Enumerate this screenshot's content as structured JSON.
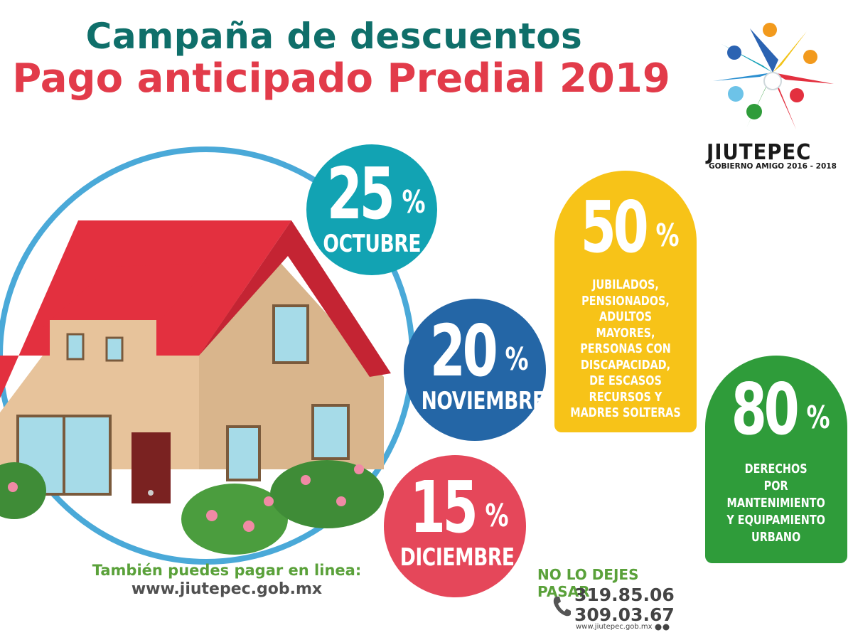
{
  "header": {
    "title_line1": "Campaña de descuentos",
    "title_line2": "Pago anticipado Predial 2019"
  },
  "logo": {
    "name": "JIUTEPEC",
    "tagline": "GOBIERNO AMIGO 2016 - 2018",
    "icon": "star-people-logo"
  },
  "discounts": [
    {
      "percent": "25",
      "symbol": "%",
      "month": "OCTUBRE",
      "color": "#12a3b3"
    },
    {
      "percent": "20",
      "symbol": "%",
      "month": "NOVIEMBRE",
      "color": "#2466a6"
    },
    {
      "percent": "15",
      "symbol": "%",
      "month": "DICIEMBRE",
      "color": "#e5475a"
    }
  ],
  "special_50": {
    "percent": "50",
    "symbol": "%",
    "text": "JUBILADOS,\nPENSIONADOS,\nADULTOS MAYORES,\nPERSONAS CON\nDISCAPACIDAD,\nDE ESCASOS\nRECURSOS Y\nMADRES SOLTERAS",
    "color": "#f7c318"
  },
  "special_80": {
    "percent": "80",
    "symbol": "%",
    "text": "DERECHOS\nPOR\nMANTENIMIENTO\nY EQUIPAMIENTO\nURBANO",
    "color": "#2f9c3a"
  },
  "online": {
    "line1": "También puedes pagar en linea:",
    "line2": "www.jiutepec.gob.mx"
  },
  "contact": {
    "headline": "NO LO DEJES PASAR",
    "phone1": "319.85.06",
    "phone2": "309.03.67",
    "website_small": "www.jiutepec.gob.mx"
  },
  "colors": {
    "title_teal": "#0f6f6a",
    "title_red": "#e23b4a",
    "green_text": "#5aa13a",
    "roof_red": "#e3303f",
    "wall_beige": "#e7c39b"
  }
}
